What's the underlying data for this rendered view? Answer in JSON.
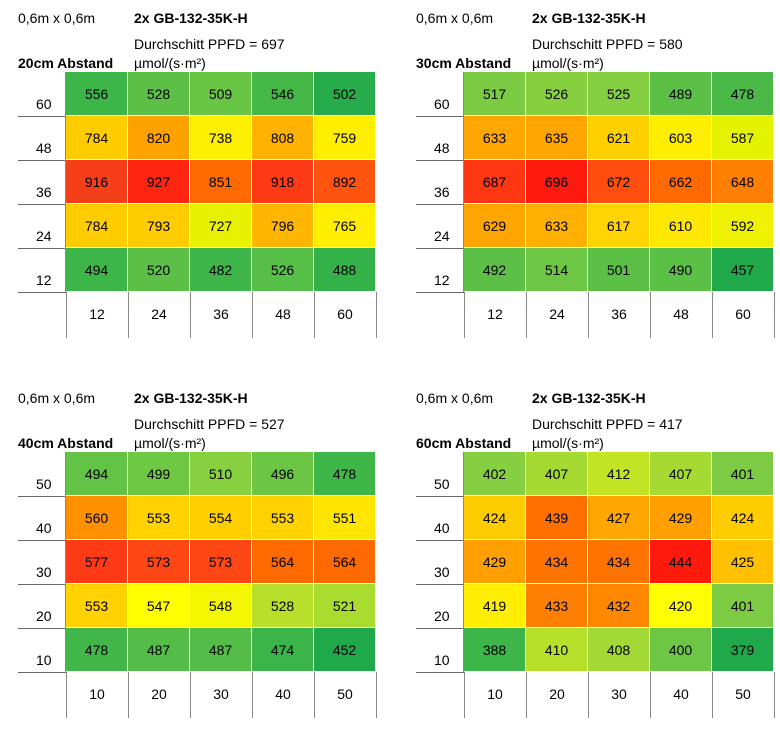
{
  "panels": [
    {
      "size": "0,6m x 0,6m",
      "model": "2x GB-132-35K-H",
      "avg": "Durchschitt PPFD = 697",
      "unit": "µmol/(s·m²)",
      "distance": "20cm Abstand",
      "y_labels": [
        "60",
        "48",
        "36",
        "24",
        "12"
      ],
      "x_labels": [
        "12",
        "24",
        "36",
        "48",
        "60"
      ],
      "values": [
        [
          556,
          528,
          509,
          546,
          502
        ],
        [
          784,
          820,
          738,
          808,
          759
        ],
        [
          916,
          927,
          851,
          918,
          892
        ],
        [
          784,
          793,
          727,
          796,
          765
        ],
        [
          494,
          520,
          482,
          526,
          488
        ]
      ],
      "colors": [
        [
          "#3cb549",
          "#5cc046",
          "#69c544",
          "#46b848",
          "#27ac4b"
        ],
        [
          "#ffcc00",
          "#ffa200",
          "#ffef00",
          "#ffb300",
          "#ffee00"
        ],
        [
          "#f53f19",
          "#ff2611",
          "#ff6a00",
          "#ff3b17",
          "#ff5310"
        ],
        [
          "#ffcc00",
          "#ffcc00",
          "#e8f200",
          "#ffb600",
          "#ffee00"
        ],
        [
          "#3cb549",
          "#5cc046",
          "#3eb649",
          "#57bf47",
          "#32b249"
        ]
      ]
    },
    {
      "size": "0,6m x 0,6m",
      "model": "2x GB-132-35K-H",
      "avg": "Durchschitt PPFD = 580",
      "unit": "µmol/(s·m²)",
      "distance": "30cm Abstand",
      "y_labels": [
        "60",
        "48",
        "36",
        "24",
        "12"
      ],
      "x_labels": [
        "12",
        "24",
        "36",
        "48",
        "60"
      ],
      "values": [
        [
          517,
          526,
          525,
          489,
          478
        ],
        [
          633,
          635,
          621,
          603,
          587
        ],
        [
          687,
          696,
          672,
          662,
          648
        ],
        [
          629,
          633,
          617,
          610,
          592
        ],
        [
          492,
          514,
          501,
          490,
          457
        ]
      ],
      "colors": [
        [
          "#7acb42",
          "#86d03f",
          "#84cf40",
          "#5cc046",
          "#4ab947"
        ],
        [
          "#ffa700",
          "#ffa500",
          "#ffd000",
          "#ffee00",
          "#e5f200"
        ],
        [
          "#ff3612",
          "#ff1a0d",
          "#ff4d0f",
          "#ff6a00",
          "#ff8000"
        ],
        [
          "#ffa500",
          "#ffb000",
          "#ffd400",
          "#ffe800",
          "#eef200"
        ],
        [
          "#5cc046",
          "#6ec744",
          "#5dc046",
          "#5bc046",
          "#1fa94b"
        ]
      ]
    },
    {
      "size": "0,6m x 0,6m",
      "model": "2x GB-132-35K-H",
      "avg": "Durchschitt PPFD = 527",
      "unit": "µmol/(s·m²)",
      "distance": "40cm Abstand",
      "y_labels": [
        "50",
        "40",
        "30",
        "20",
        "10"
      ],
      "x_labels": [
        "10",
        "20",
        "30",
        "40",
        "50"
      ],
      "values": [
        [
          494,
          499,
          510,
          496,
          478
        ],
        [
          560,
          553,
          554,
          553,
          551
        ],
        [
          577,
          573,
          573,
          564,
          564
        ],
        [
          553,
          547,
          548,
          528,
          521
        ],
        [
          478,
          487,
          487,
          474,
          452
        ]
      ],
      "colors": [
        [
          "#62c346",
          "#6fc844",
          "#87d03f",
          "#6cc644",
          "#3fb648"
        ],
        [
          "#ff9000",
          "#ffd200",
          "#ffcf00",
          "#ffd200",
          "#ffe600"
        ],
        [
          "#ff3b17",
          "#ff4715",
          "#ff4715",
          "#ff6a00",
          "#ff6a00"
        ],
        [
          "#ffd200",
          "#ffff00",
          "#f3f700",
          "#b8e02a",
          "#a8dc2e"
        ],
        [
          "#40b748",
          "#53bd47",
          "#53bd47",
          "#3bb549",
          "#1fa94b"
        ]
      ]
    },
    {
      "size": "0,6m x 0,6m",
      "model": "2x GB-132-35K-H",
      "avg": "Durchschitt PPFD = 417",
      "unit": "µmol/(s·m²)",
      "distance": "60cm Abstand",
      "y_labels": [
        "50",
        "40",
        "30",
        "20",
        "10"
      ],
      "x_labels": [
        "10",
        "20",
        "30",
        "40",
        "50"
      ],
      "values": [
        [
          402,
          407,
          412,
          407,
          401
        ],
        [
          424,
          439,
          427,
          429,
          424
        ],
        [
          429,
          434,
          434,
          444,
          425
        ],
        [
          419,
          433,
          432,
          420,
          401
        ],
        [
          388,
          410,
          408,
          400,
          379
        ]
      ],
      "colors": [
        [
          "#86cf40",
          "#a5da33",
          "#c3e424",
          "#a5da33",
          "#7dcb42"
        ],
        [
          "#ffcc00",
          "#ff6f00",
          "#ffa600",
          "#ffa000",
          "#ffcc00"
        ],
        [
          "#ffa000",
          "#ff7300",
          "#ff7300",
          "#ff1a0d",
          "#ffc000"
        ],
        [
          "#ffee00",
          "#ff8000",
          "#ff8800",
          "#ffff00",
          "#7dcb42"
        ],
        [
          "#3cb549",
          "#b6e02a",
          "#a3d934",
          "#6ec744",
          "#1fa94b"
        ]
      ]
    }
  ]
}
